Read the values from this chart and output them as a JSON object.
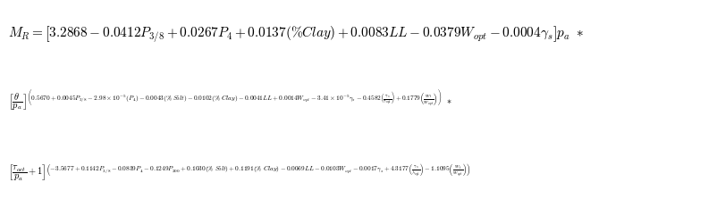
{
  "title": "",
  "bg_color": "#ffffff",
  "line1": "$M_R = \\left[3.2868 - 0.0412P_{3/8} + 0.0267P_4 + 0.0137(\\%Clay) + 0.0083LL - 0.0379W_{opt} - 0.0004\\gamma_s\\right]p_a\\ *$",
  "line2": "$\\left[\\dfrac{\\theta}{p_a}\\right]^{\\left(0.5670+0.0045P_{3/8}-2.98\\times10^{-5}(P_4)-0.0043(\\%\\ Silt)-0.0102(\\%\\ Clay)-0.0041LL+0.0014W_{opt}-3.41\\times10^{-5}\\gamma_s-0.4582\\left(\\frac{\\gamma_s}{\\gamma_{opt}}\\right)+0.1779\\left(\\frac{W_t}{W_{opt}}\\right)\\right)}\\ *$",
  "line3": "$\\left[\\dfrac{\\tau_{oct}}{p_a}+1\\right]^{\\left(-3.5677+0.1142P_{3/8}-0.0839P_4-0.1249P_{200}+0.1030(\\%\\ Silt)+0.1191(\\%\\ Clay)-0.0069LL-0.0103W_{opt}-0.0017\\gamma_s+4.3177\\left(\\frac{\\gamma_s}{\\lambda_{opt}}\\right)-1.1095\\left(\\frac{W_t}{W_{opt}}\\right)\\right)}$",
  "fontsize_line1": 11,
  "fontsize_line2": 7.5,
  "fontsize_line3": 7.5,
  "text_color": "#000000",
  "fig_width": 8.03,
  "fig_height": 2.23,
  "dpi": 100
}
